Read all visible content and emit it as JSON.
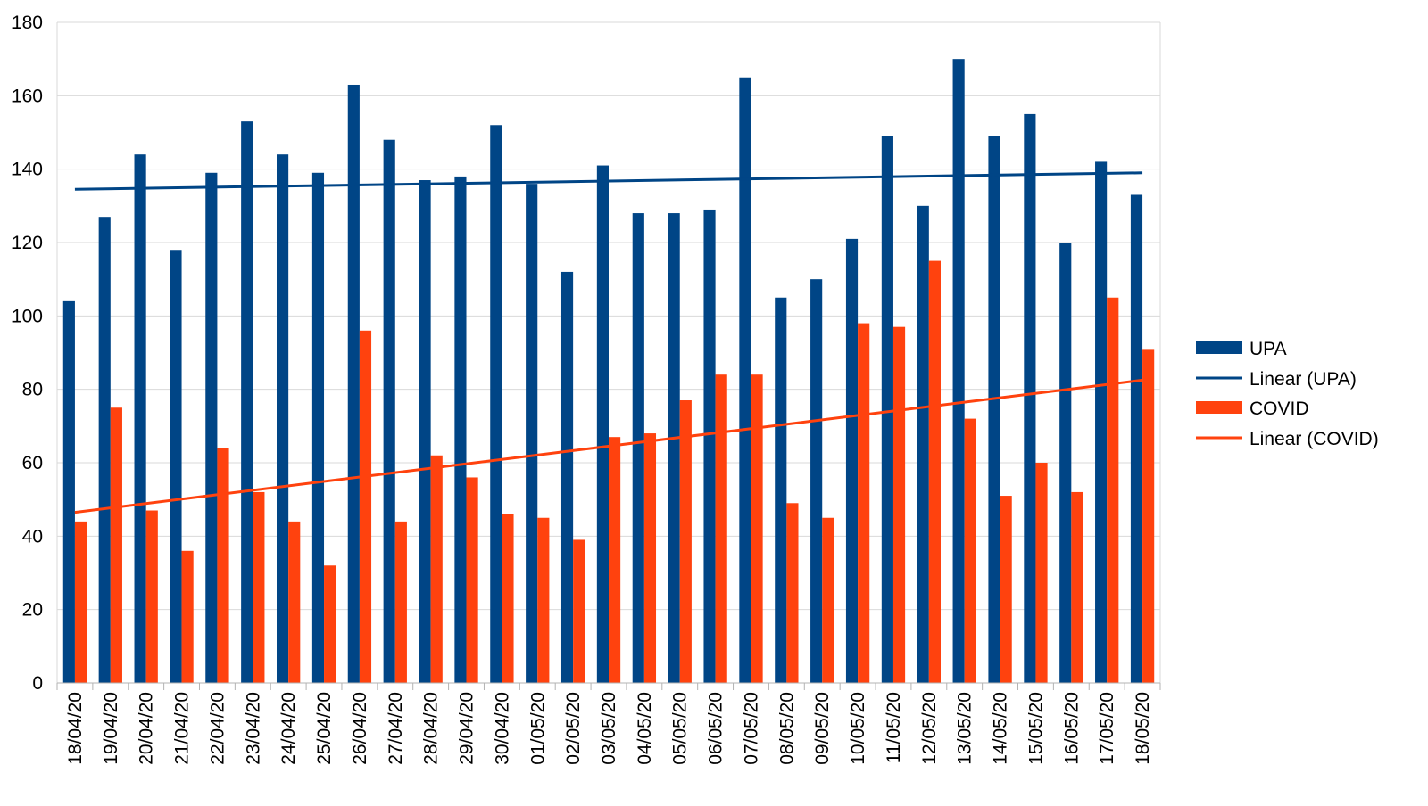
{
  "chart_data": {
    "type": "bar",
    "categories": [
      "18/04/20",
      "19/04/20",
      "20/04/20",
      "21/04/20",
      "22/04/20",
      "23/04/20",
      "24/04/20",
      "25/04/20",
      "26/04/20",
      "27/04/20",
      "28/04/20",
      "29/04/20",
      "30/04/20",
      "01/05/20",
      "02/05/20",
      "03/05/20",
      "04/05/20",
      "05/05/20",
      "06/05/20",
      "07/05/20",
      "08/05/20",
      "09/05/20",
      "10/05/20",
      "11/05/20",
      "12/05/20",
      "13/05/20",
      "14/05/20",
      "15/05/20",
      "16/05/20",
      "17/05/20",
      "18/05/20"
    ],
    "series": [
      {
        "name": "UPA",
        "color": "#004586",
        "values": [
          104,
          127,
          144,
          118,
          139,
          153,
          144,
          139,
          163,
          148,
          137,
          138,
          152,
          136,
          112,
          141,
          128,
          128,
          129,
          165,
          105,
          110,
          121,
          149,
          130,
          170,
          149,
          155,
          120,
          142,
          133
        ]
      },
      {
        "name": "COVID",
        "color": "#ff420e",
        "values": [
          44,
          75,
          47,
          36,
          64,
          52,
          44,
          32,
          96,
          44,
          62,
          56,
          46,
          45,
          39,
          67,
          68,
          77,
          84,
          84,
          49,
          45,
          98,
          97,
          115,
          72,
          51,
          60,
          52,
          105,
          91
        ]
      }
    ],
    "trendlines": [
      {
        "name": "Linear (UPA)",
        "color": "#004586",
        "start": 134.5,
        "end": 139.0
      },
      {
        "name": "Linear (COVID)",
        "color": "#ff420e",
        "start": 46.5,
        "end": 82.5
      }
    ],
    "ylim": [
      0,
      180
    ],
    "yticks": [
      0,
      20,
      40,
      60,
      80,
      100,
      120,
      140,
      160,
      180
    ],
    "grid": true,
    "legend": {
      "position": "right",
      "items": [
        {
          "label": "UPA",
          "kind": "bar",
          "color": "#004586"
        },
        {
          "label": "Linear (UPA)",
          "kind": "line",
          "color": "#004586"
        },
        {
          "label": "COVID",
          "kind": "bar",
          "color": "#ff420e"
        },
        {
          "label": "Linear (COVID)",
          "kind": "line",
          "color": "#ff420e"
        }
      ]
    }
  }
}
